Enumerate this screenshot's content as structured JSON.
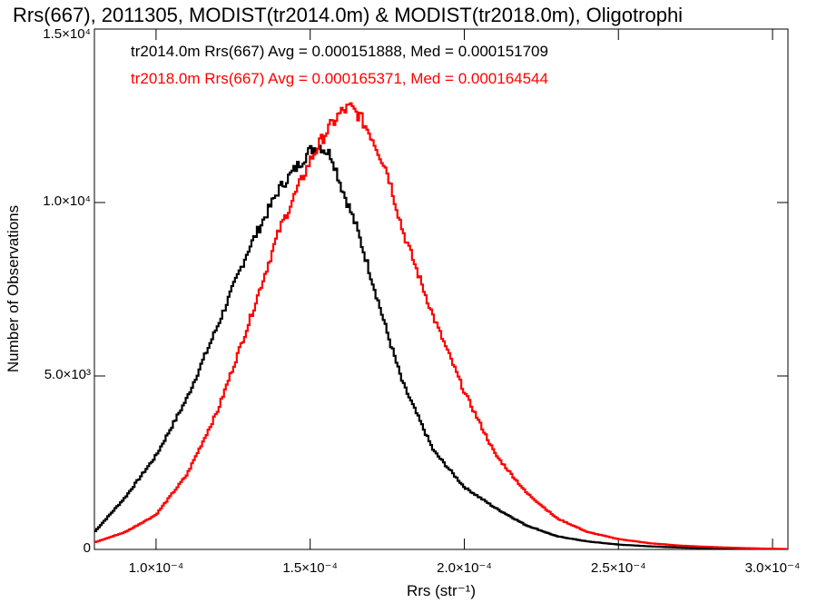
{
  "chart_data": {
    "type": "line",
    "title": "Rrs(667), 2011305, MODIST(tr2014.0m) & MODIST(tr2018.0m), Oligotrophi",
    "xlabel": "Rrs (str⁻¹)",
    "ylabel": "Number of Observations",
    "xlim": [
      8e-05,
      0.000305
    ],
    "ylim": [
      0,
      15000
    ],
    "x_ticks": [
      {
        "value": 0.0001,
        "label": "1.0×10⁻⁴"
      },
      {
        "value": 0.00015,
        "label": "1.5×10⁻⁴"
      },
      {
        "value": 0.0002,
        "label": "2.0×10⁻⁴"
      },
      {
        "value": 0.00025,
        "label": "2.5×10⁻⁴"
      },
      {
        "value": 0.0003,
        "label": "3.0×10⁻⁴"
      }
    ],
    "y_ticks": [
      {
        "value": 0,
        "label": "0"
      },
      {
        "value": 5000,
        "label": "5.0×10³"
      },
      {
        "value": 10000,
        "label": "1.0×10⁴"
      },
      {
        "value": 15000,
        "label": "1.5×10⁴"
      }
    ],
    "annotations": [
      {
        "text": "tr2014.0m Rrs(667) Avg = 0.000151888, Med = 0.000151709",
        "color": "#000000"
      },
      {
        "text": "tr2018.0m Rrs(667) Avg = 0.000165371, Med = 0.000164544",
        "color": "#ff0000"
      }
    ],
    "series": [
      {
        "color": "#000000",
        "x": [
          8e-05,
          9e-05,
          0.0001,
          0.00011,
          0.00012,
          0.00013,
          0.00014,
          0.00015,
          0.000153,
          0.000157,
          0.00016,
          0.000165,
          0.00017,
          0.000175,
          0.00018,
          0.00019,
          0.0002,
          0.00021,
          0.00022,
          0.00023,
          0.00024,
          0.00025,
          0.00026,
          0.00027,
          0.00028,
          0.00029,
          0.0003,
          0.000305
        ],
        "y": [
          500,
          1500,
          2700,
          4350,
          6450,
          8650,
          10400,
          11500,
          11650,
          11350,
          10500,
          9300,
          7800,
          6250,
          4800,
          2850,
          1800,
          1200,
          700,
          380,
          230,
          140,
          90,
          55,
          35,
          20,
          12,
          8
        ]
      },
      {
        "color": "#ff0000",
        "x": [
          8e-05,
          9e-05,
          0.0001,
          0.00011,
          0.00012,
          0.00013,
          0.00014,
          0.00015,
          0.000155,
          0.00016,
          0.000163,
          0.000166,
          0.00017,
          0.000175,
          0.00018,
          0.00019,
          0.0002,
          0.00021,
          0.00022,
          0.00023,
          0.00024,
          0.00025,
          0.00026,
          0.00027,
          0.00028,
          0.00029,
          0.0003,
          0.000305
        ],
        "y": [
          200,
          500,
          1000,
          2150,
          4000,
          6500,
          9200,
          11200,
          12000,
          12600,
          12750,
          12500,
          11900,
          10900,
          9200,
          6700,
          4550,
          2750,
          1650,
          900,
          500,
          300,
          180,
          110,
          70,
          40,
          20,
          10
        ]
      }
    ]
  }
}
